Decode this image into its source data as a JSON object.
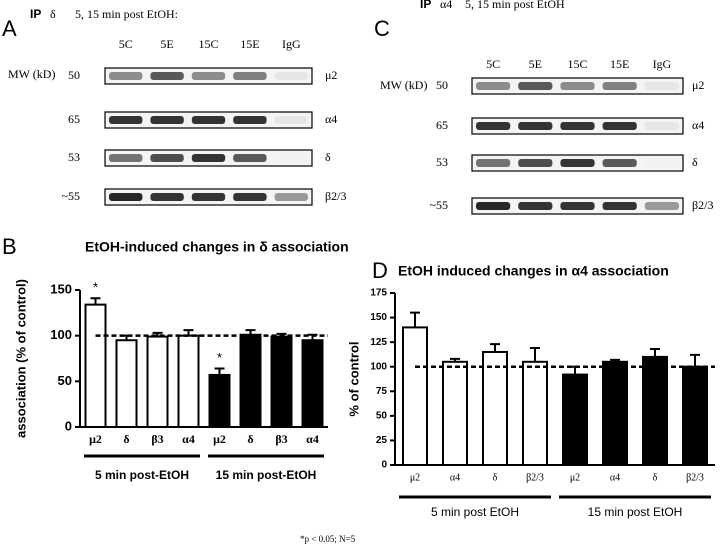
{
  "panels": [
    {
      "letter": "A",
      "ip": "IP",
      "ip_target": "δ",
      "caption": "5, 15 min post EtOH:",
      "mw_header": "MW (kD)",
      "lanes": [
        "5C",
        "5E",
        "15C",
        "15E",
        "IgG"
      ],
      "rows": [
        {
          "mw": 50,
          "protein": "μ2"
        },
        {
          "mw": 65,
          "protein": "α4"
        },
        {
          "mw": 53,
          "protein": "δ"
        },
        {
          "mw": "~55",
          "protein": "β2/3"
        }
      ]
    },
    {
      "letter": "C",
      "ip": "IP",
      "ip_target": "α4",
      "caption": "5, 15 min post EtOH",
      "mw_header": "MW (kD)",
      "lanes": [
        "5C",
        "5E",
        "15C",
        "15E",
        "IgG"
      ],
      "rows": [
        {
          "mw": 50,
          "protein": "μ2"
        },
        {
          "mw": 65,
          "protein": "α4"
        },
        {
          "mw": 53,
          "protein": "δ"
        },
        {
          "mw": "~55",
          "protein": "β2/3"
        }
      ]
    }
  ],
  "chart_data": [
    {
      "type": "bar",
      "letter": "B",
      "title": "EtOH-induced changes in δ association",
      "y_label": "association (% of control)",
      "categories": [
        "μ2",
        "δ",
        "β3",
        "α4",
        "μ2",
        "δ",
        "β3",
        "α4"
      ],
      "values": [
        134,
        95,
        99,
        100,
        57,
        101,
        99,
        95
      ],
      "errors": [
        7,
        5,
        4,
        6,
        7,
        5,
        3,
        6
      ],
      "colors": [
        "#ffffff",
        "#ffffff",
        "#ffffff",
        "#ffffff",
        "#000000",
        "#000000",
        "#000000",
        "#000000"
      ],
      "ylim": [
        0,
        150
      ],
      "yticks": [
        0,
        50,
        100,
        150
      ],
      "reference_line": 100,
      "annotations": [
        {
          "text": "*",
          "bar": 0
        },
        {
          "text": "*",
          "bar": 4
        }
      ],
      "groups": [
        {
          "label": "5 min post-EtOH",
          "count": 4
        },
        {
          "label": "15 min post-EtOH",
          "count": 4
        }
      ],
      "footnote": "*p < 0.05; N=5"
    },
    {
      "type": "bar",
      "letter": "D",
      "title": "EtOH induced changes in α4 association",
      "y_label": "% of control",
      "categories": [
        "μ2",
        "α4",
        "δ",
        "β2/3",
        "μ2",
        "α4",
        "δ",
        "β2/3"
      ],
      "values": [
        140,
        105,
        115,
        105,
        92,
        105,
        110,
        100
      ],
      "errors": [
        15,
        3,
        8,
        14,
        8,
        2,
        8,
        12
      ],
      "colors": [
        "#ffffff",
        "#ffffff",
        "#ffffff",
        "#ffffff",
        "#000000",
        "#000000",
        "#000000",
        "#000000"
      ],
      "ylim": [
        0,
        175
      ],
      "yticks": [
        0,
        25,
        50,
        75,
        100,
        125,
        150,
        175
      ],
      "reference_line": 100,
      "groups": [
        {
          "label": "5 min post EtOH",
          "count": 4
        },
        {
          "label": "15 min post EtOH",
          "count": 4
        }
      ]
    }
  ]
}
